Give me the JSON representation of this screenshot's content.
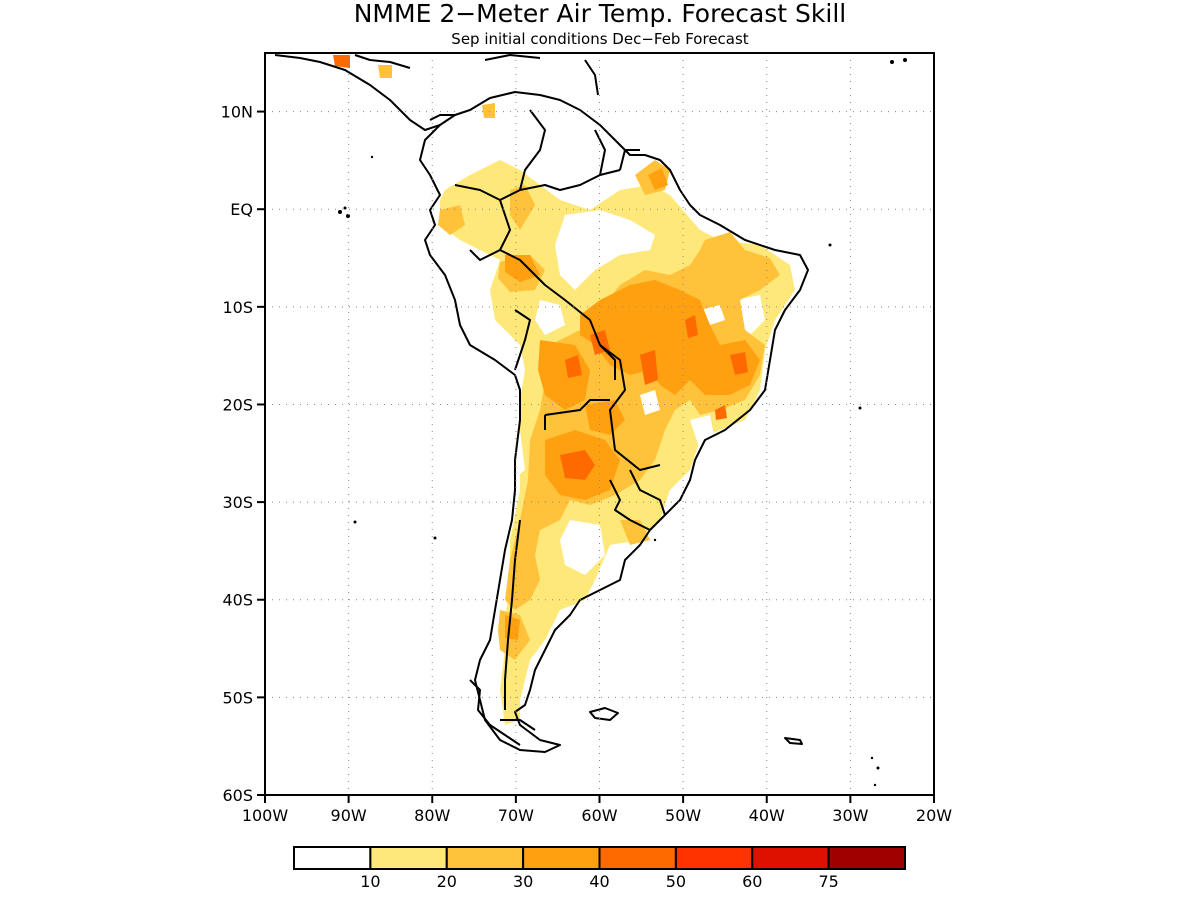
{
  "title": "NMME 2−Meter Air Temp. Forecast Skill",
  "subtitle": "Sep initial conditions  Dec−Feb Forecast",
  "map": {
    "lon_range": [
      -100,
      -20
    ],
    "lat_range": [
      -60,
      16
    ],
    "lat_ticks": [
      {
        "value": 10,
        "label": "10N"
      },
      {
        "value": 0,
        "label": "EQ"
      },
      {
        "value": -10,
        "label": "10S"
      },
      {
        "value": -20,
        "label": "20S"
      },
      {
        "value": -30,
        "label": "30S"
      },
      {
        "value": -40,
        "label": "40S"
      },
      {
        "value": -50,
        "label": "50S"
      },
      {
        "value": -60,
        "label": "60S"
      }
    ],
    "lon_ticks": [
      {
        "value": -100,
        "label": "100W"
      },
      {
        "value": -90,
        "label": "90W"
      },
      {
        "value": -80,
        "label": "80W"
      },
      {
        "value": -70,
        "label": "70W"
      },
      {
        "value": -60,
        "label": "60W"
      },
      {
        "value": -50,
        "label": "50W"
      },
      {
        "value": -40,
        "label": "40W"
      },
      {
        "value": -30,
        "label": "30W"
      },
      {
        "value": -20,
        "label": "20W"
      }
    ],
    "grid": "dotted"
  },
  "colorbar": {
    "colors": [
      "#ffffff",
      "#ffe87a",
      "#ffc23a",
      "#ffa010",
      "#ff6a00",
      "#ff3300",
      "#dd1100",
      "#a00000"
    ],
    "labels": [
      "10",
      "20",
      "30",
      "40",
      "50",
      "60",
      "75"
    ]
  }
}
